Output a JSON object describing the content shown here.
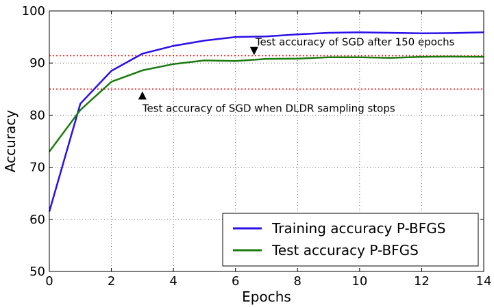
{
  "chart_data": {
    "type": "line",
    "xlabel": "Epochs",
    "ylabel": "Accuracy",
    "xlim": [
      0,
      14
    ],
    "ylim": [
      50,
      100
    ],
    "xticks": [
      0,
      2,
      4,
      6,
      8,
      10,
      12,
      14
    ],
    "yticks": [
      50,
      60,
      70,
      80,
      90,
      100
    ],
    "grid": true,
    "legend_position": "bottom-right",
    "x": [
      0,
      1,
      2,
      3,
      4,
      5,
      6,
      7,
      8,
      9,
      10,
      11,
      12,
      13,
      14
    ],
    "series": [
      {
        "name": "Training accuracy P-BFGS",
        "color": "#2b0fe8",
        "values": [
          61.5,
          82.2,
          88.5,
          91.8,
          93.3,
          94.3,
          95.0,
          95.1,
          95.5,
          95.8,
          95.9,
          95.8,
          95.7,
          95.75,
          95.9
        ]
      },
      {
        "name": "Test accuracy P-BFGS",
        "color": "#1a7a0e",
        "values": [
          73.0,
          81.0,
          86.4,
          88.6,
          89.8,
          90.5,
          90.4,
          90.8,
          90.85,
          91.1,
          91.1,
          91.0,
          91.2,
          91.25,
          91.2
        ]
      }
    ],
    "reference_lines": [
      {
        "y": 91.4,
        "color": "#ff0000",
        "style": "dotted"
      },
      {
        "y": 85.0,
        "color": "#ff0000",
        "style": "dotted"
      }
    ],
    "annotations": [
      {
        "text": "Test accuracy of SGD after 150 epochs",
        "marker_x": 6.6,
        "marker_y": 92.3,
        "marker": "down-triangle"
      },
      {
        "text": "Test accuracy of SGD when DLDR sampling stops",
        "marker_x": 3.0,
        "marker_y": 83.8,
        "marker": "up-triangle"
      }
    ]
  }
}
